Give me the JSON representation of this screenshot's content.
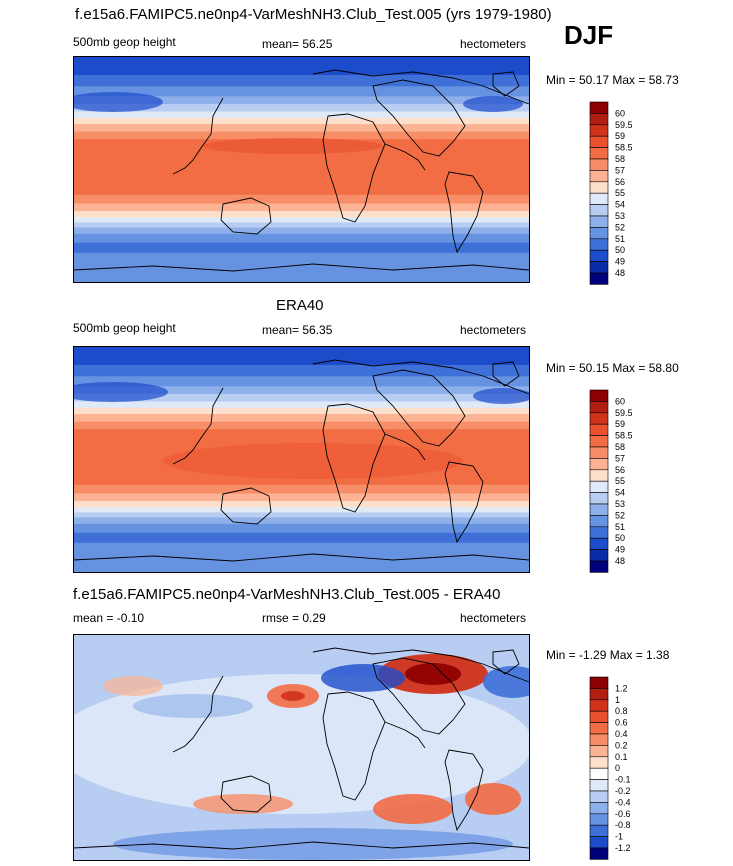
{
  "title_top": "f.e15a6.FAMIPC5.ne0np4-VarMeshNH3.Club_Test.005 (yrs 1979-1980)",
  "season": "DJF",
  "panels": [
    {
      "title": "",
      "left_label": "500mb geop height",
      "center_label": "mean=  56.25",
      "right_label": "hectometers",
      "minmax": "Min =  50.17 Max =  58.73"
    },
    {
      "title": "ERA40",
      "left_label": "500mb geop height",
      "center_label": "mean=  56.35",
      "right_label": "hectometers",
      "minmax": "Min =  50.15 Max =  58.80"
    },
    {
      "title": "f.e15a6.FAMIPC5.ne0np4-VarMeshNH3.Club_Test.005 - ERA40",
      "left_label": "mean =  -0.10",
      "center_label": "rmse =   0.29",
      "right_label": "hectometers",
      "minmax": "Min =  -1.29 Max =   1.38"
    }
  ],
  "chart_data": [
    {
      "type": "heatmap",
      "title": "500mb geop height",
      "units": "hectometers",
      "mean": 56.25,
      "min": 50.17,
      "max": 58.73,
      "colorbar_levels": [
        "60",
        "59.5",
        "59",
        "58.5",
        "58",
        "57",
        "56",
        "55",
        "54",
        "53",
        "52",
        "51",
        "50",
        "49",
        "48"
      ],
      "colorbar_colors": [
        "#8b0000",
        "#b11e12",
        "#d0321a",
        "#e8502f",
        "#f26c44",
        "#f88e68",
        "#fbb393",
        "#fde0cc",
        "#dfe9f8",
        "#b7cdf2",
        "#8eb0ea",
        "#6692e2",
        "#3e70d8",
        "#1d4ccb",
        "#0a2aa8",
        "#00007a"
      ]
    },
    {
      "type": "heatmap",
      "title": "ERA40",
      "units": "hectometers",
      "mean": 56.35,
      "min": 50.15,
      "max": 58.8,
      "colorbar_levels": [
        "60",
        "59.5",
        "59",
        "58.5",
        "58",
        "57",
        "56",
        "55",
        "54",
        "53",
        "52",
        "51",
        "50",
        "49",
        "48"
      ],
      "colorbar_colors": [
        "#8b0000",
        "#b11e12",
        "#d0321a",
        "#e8502f",
        "#f26c44",
        "#f88e68",
        "#fbb393",
        "#fde0cc",
        "#dfe9f8",
        "#b7cdf2",
        "#8eb0ea",
        "#6692e2",
        "#3e70d8",
        "#1d4ccb",
        "#0a2aa8",
        "#00007a"
      ]
    },
    {
      "type": "heatmap",
      "title": "f.e15a6.FAMIPC5.ne0np4-VarMeshNH3.Club_Test.005 - ERA40",
      "units": "hectometers",
      "mean": -0.1,
      "rmse": 0.29,
      "min": -1.29,
      "max": 1.38,
      "colorbar_levels": [
        "1.2",
        "1",
        "0.8",
        "0.6",
        "0.4",
        "0.2",
        "0.1",
        "0",
        "-0.1",
        "-0.2",
        "-0.4",
        "-0.6",
        "-0.8",
        "-1",
        "-1.2"
      ],
      "colorbar_colors": [
        "#8b0000",
        "#b11e12",
        "#d0321a",
        "#e8502f",
        "#f26c44",
        "#f88e68",
        "#fbb393",
        "#fde0cc",
        "#ffffff",
        "#dfe9f8",
        "#b7cdf2",
        "#8eb0ea",
        "#6692e2",
        "#3e70d8",
        "#1d4ccb",
        "#00007a"
      ]
    }
  ]
}
